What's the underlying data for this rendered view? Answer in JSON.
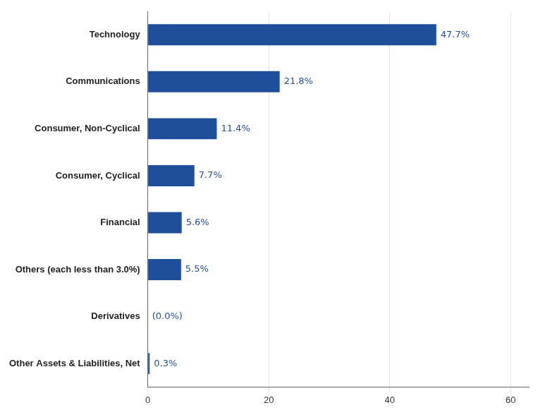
{
  "chart_data": {
    "type": "bar",
    "orientation": "horizontal",
    "categories": [
      "Other Assets & Liabilities, Net",
      "Derivatives",
      "Others (each less than 3.0%)",
      "Financial",
      "Consumer, Cyclical",
      "Consumer, Non-Cyclical",
      "Communications",
      "Technology"
    ],
    "values": [
      0.3,
      0.0,
      5.5,
      5.6,
      7.7,
      11.4,
      21.8,
      47.7
    ],
    "value_labels": [
      "0.3%",
      "(0.0%)",
      "5.5%",
      "5.6%",
      "7.7%",
      "11.4%",
      "21.8%",
      "47.7%"
    ],
    "data_labels": true,
    "color": "#1F4E9B",
    "xlim": [
      0,
      63
    ],
    "xticks": [
      0,
      20,
      40,
      60
    ],
    "grid": true
  }
}
